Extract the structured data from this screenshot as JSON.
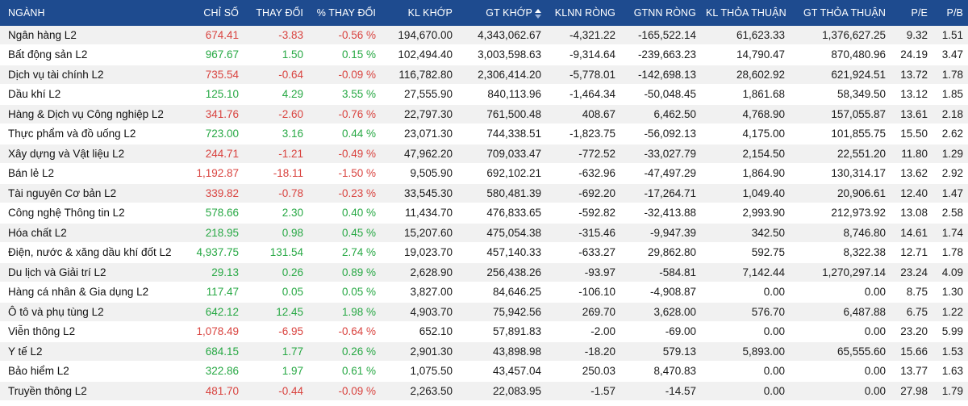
{
  "colors": {
    "header_bg": "#1e4b8f",
    "up": "#27a844",
    "down": "#d9433f",
    "row_alt": "#f1f1f1"
  },
  "columns": [
    {
      "key": "nganh",
      "label": "NGÀNH"
    },
    {
      "key": "chi_so",
      "label": "CHỈ SỐ"
    },
    {
      "key": "thay_doi",
      "label": "THAY ĐỔI"
    },
    {
      "key": "pct",
      "label": "% THAY ĐỔI"
    },
    {
      "key": "kl_khop",
      "label": "KL KHỚP"
    },
    {
      "key": "gt_khop",
      "label": "GT KHỚP",
      "sort_icon": "sort-icon"
    },
    {
      "key": "klnn",
      "label": "KLNN RÒNG"
    },
    {
      "key": "gtnn",
      "label": "GTNN RÒNG"
    },
    {
      "key": "kl_tt",
      "label": "KL THỎA THUẬN"
    },
    {
      "key": "gt_tt",
      "label": "GT THỎA THUẬN"
    },
    {
      "key": "pe",
      "label": "P/E"
    },
    {
      "key": "pb",
      "label": "P/B"
    }
  ],
  "rows": [
    {
      "nganh": "Ngân hàng L2",
      "chi_so": "674.41",
      "thay_doi": "-3.83",
      "pct": "-0.56 %",
      "kl_khop": "194,670.00",
      "gt_khop": "4,343,062.67",
      "klnn": "-4,321.22",
      "gtnn": "-165,522.14",
      "kl_tt": "61,623.33",
      "gt_tt": "1,376,627.25",
      "pe": "9.32",
      "pb": "1.51",
      "trend": "down"
    },
    {
      "nganh": "Bất động sản L2",
      "chi_so": "967.67",
      "thay_doi": "1.50",
      "pct": "0.15 %",
      "kl_khop": "102,494.40",
      "gt_khop": "3,003,598.63",
      "klnn": "-9,314.64",
      "gtnn": "-239,663.23",
      "kl_tt": "14,790.47",
      "gt_tt": "870,480.96",
      "pe": "24.19",
      "pb": "3.47",
      "trend": "up"
    },
    {
      "nganh": "Dịch vụ tài chính L2",
      "chi_so": "735.54",
      "thay_doi": "-0.64",
      "pct": "-0.09 %",
      "kl_khop": "116,782.80",
      "gt_khop": "2,306,414.20",
      "klnn": "-5,778.01",
      "gtnn": "-142,698.13",
      "kl_tt": "28,602.92",
      "gt_tt": "621,924.51",
      "pe": "13.72",
      "pb": "1.78",
      "trend": "down"
    },
    {
      "nganh": "Dầu khí L2",
      "chi_so": "125.10",
      "thay_doi": "4.29",
      "pct": "3.55 %",
      "kl_khop": "27,555.90",
      "gt_khop": "840,113.96",
      "klnn": "-1,464.34",
      "gtnn": "-50,048.45",
      "kl_tt": "1,861.68",
      "gt_tt": "58,349.50",
      "pe": "13.12",
      "pb": "1.85",
      "trend": "up"
    },
    {
      "nganh": "Hàng & Dịch vụ Công nghiệp L2",
      "chi_so": "341.76",
      "thay_doi": "-2.60",
      "pct": "-0.76 %",
      "kl_khop": "22,797.30",
      "gt_khop": "761,500.48",
      "klnn": "408.67",
      "gtnn": "6,462.50",
      "kl_tt": "4,768.90",
      "gt_tt": "157,055.87",
      "pe": "13.61",
      "pb": "2.18",
      "trend": "down"
    },
    {
      "nganh": "Thực phẩm và đồ uống L2",
      "chi_so": "723.00",
      "thay_doi": "3.16",
      "pct": "0.44 %",
      "kl_khop": "23,071.30",
      "gt_khop": "744,338.51",
      "klnn": "-1,823.75",
      "gtnn": "-56,092.13",
      "kl_tt": "4,175.00",
      "gt_tt": "101,855.75",
      "pe": "15.50",
      "pb": "2.62",
      "trend": "up"
    },
    {
      "nganh": "Xây dựng và Vật liệu L2",
      "chi_so": "244.71",
      "thay_doi": "-1.21",
      "pct": "-0.49 %",
      "kl_khop": "47,962.20",
      "gt_khop": "709,033.47",
      "klnn": "-772.52",
      "gtnn": "-33,027.79",
      "kl_tt": "2,154.50",
      "gt_tt": "22,551.20",
      "pe": "11.80",
      "pb": "1.29",
      "trend": "down"
    },
    {
      "nganh": "Bán lẻ L2",
      "chi_so": "1,192.87",
      "thay_doi": "-18.11",
      "pct": "-1.50 %",
      "kl_khop": "9,505.90",
      "gt_khop": "692,102.21",
      "klnn": "-632.96",
      "gtnn": "-47,497.29",
      "kl_tt": "1,864.90",
      "gt_tt": "130,314.17",
      "pe": "13.62",
      "pb": "2.92",
      "trend": "down"
    },
    {
      "nganh": "Tài nguyên Cơ bản L2",
      "chi_so": "339.82",
      "thay_doi": "-0.78",
      "pct": "-0.23 %",
      "kl_khop": "33,545.30",
      "gt_khop": "580,481.39",
      "klnn": "-692.20",
      "gtnn": "-17,264.71",
      "kl_tt": "1,049.40",
      "gt_tt": "20,906.61",
      "pe": "12.40",
      "pb": "1.47",
      "trend": "down"
    },
    {
      "nganh": "Công nghệ Thông tin L2",
      "chi_so": "578.66",
      "thay_doi": "2.30",
      "pct": "0.40 %",
      "kl_khop": "11,434.70",
      "gt_khop": "476,833.65",
      "klnn": "-592.82",
      "gtnn": "-32,413.88",
      "kl_tt": "2,993.90",
      "gt_tt": "212,973.92",
      "pe": "13.08",
      "pb": "2.58",
      "trend": "up"
    },
    {
      "nganh": "Hóa chất L2",
      "chi_so": "218.95",
      "thay_doi": "0.98",
      "pct": "0.45 %",
      "kl_khop": "15,207.60",
      "gt_khop": "475,054.38",
      "klnn": "-315.46",
      "gtnn": "-9,947.39",
      "kl_tt": "342.50",
      "gt_tt": "8,746.80",
      "pe": "14.61",
      "pb": "1.74",
      "trend": "up"
    },
    {
      "nganh": "Điện, nước & xăng dầu khí đốt L2",
      "chi_so": "4,937.75",
      "thay_doi": "131.54",
      "pct": "2.74 %",
      "kl_khop": "19,023.70",
      "gt_khop": "457,140.33",
      "klnn": "-633.27",
      "gtnn": "29,862.80",
      "kl_tt": "592.75",
      "gt_tt": "8,322.38",
      "pe": "12.71",
      "pb": "1.78",
      "trend": "up"
    },
    {
      "nganh": "Du lịch và Giải trí L2",
      "chi_so": "29.13",
      "thay_doi": "0.26",
      "pct": "0.89 %",
      "kl_khop": "2,628.90",
      "gt_khop": "256,438.26",
      "klnn": "-93.97",
      "gtnn": "-584.81",
      "kl_tt": "7,142.44",
      "gt_tt": "1,270,297.14",
      "pe": "23.24",
      "pb": "4.09",
      "trend": "up"
    },
    {
      "nganh": "Hàng cá nhân & Gia dụng L2",
      "chi_so": "117.47",
      "thay_doi": "0.05",
      "pct": "0.05 %",
      "kl_khop": "3,827.00",
      "gt_khop": "84,646.25",
      "klnn": "-106.10",
      "gtnn": "-4,908.87",
      "kl_tt": "0.00",
      "gt_tt": "0.00",
      "pe": "8.75",
      "pb": "1.30",
      "trend": "up"
    },
    {
      "nganh": "Ô tô và phụ tùng L2",
      "chi_so": "642.12",
      "thay_doi": "12.45",
      "pct": "1.98 %",
      "kl_khop": "4,903.70",
      "gt_khop": "75,942.56",
      "klnn": "269.70",
      "gtnn": "3,628.00",
      "kl_tt": "576.70",
      "gt_tt": "6,487.88",
      "pe": "6.75",
      "pb": "1.22",
      "trend": "up"
    },
    {
      "nganh": "Viễn thông L2",
      "chi_so": "1,078.49",
      "thay_doi": "-6.95",
      "pct": "-0.64 %",
      "kl_khop": "652.10",
      "gt_khop": "57,891.83",
      "klnn": "-2.00",
      "gtnn": "-69.00",
      "kl_tt": "0.00",
      "gt_tt": "0.00",
      "pe": "23.20",
      "pb": "5.99",
      "trend": "down"
    },
    {
      "nganh": "Y tế L2",
      "chi_so": "684.15",
      "thay_doi": "1.77",
      "pct": "0.26 %",
      "kl_khop": "2,901.30",
      "gt_khop": "43,898.98",
      "klnn": "-18.20",
      "gtnn": "579.13",
      "kl_tt": "5,893.00",
      "gt_tt": "65,555.60",
      "pe": "15.66",
      "pb": "1.53",
      "trend": "up"
    },
    {
      "nganh": "Bảo hiểm L2",
      "chi_so": "322.86",
      "thay_doi": "1.97",
      "pct": "0.61 %",
      "kl_khop": "1,075.50",
      "gt_khop": "43,457.04",
      "klnn": "250.03",
      "gtnn": "8,470.83",
      "kl_tt": "0.00",
      "gt_tt": "0.00",
      "pe": "13.77",
      "pb": "1.63",
      "trend": "up"
    },
    {
      "nganh": "Truyền thông L2",
      "chi_so": "481.70",
      "thay_doi": "-0.44",
      "pct": "-0.09 %",
      "kl_khop": "2,263.50",
      "gt_khop": "22,083.95",
      "klnn": "-1.57",
      "gtnn": "-14.57",
      "kl_tt": "0.00",
      "gt_tt": "0.00",
      "pe": "27.98",
      "pb": "1.79",
      "trend": "down"
    }
  ]
}
